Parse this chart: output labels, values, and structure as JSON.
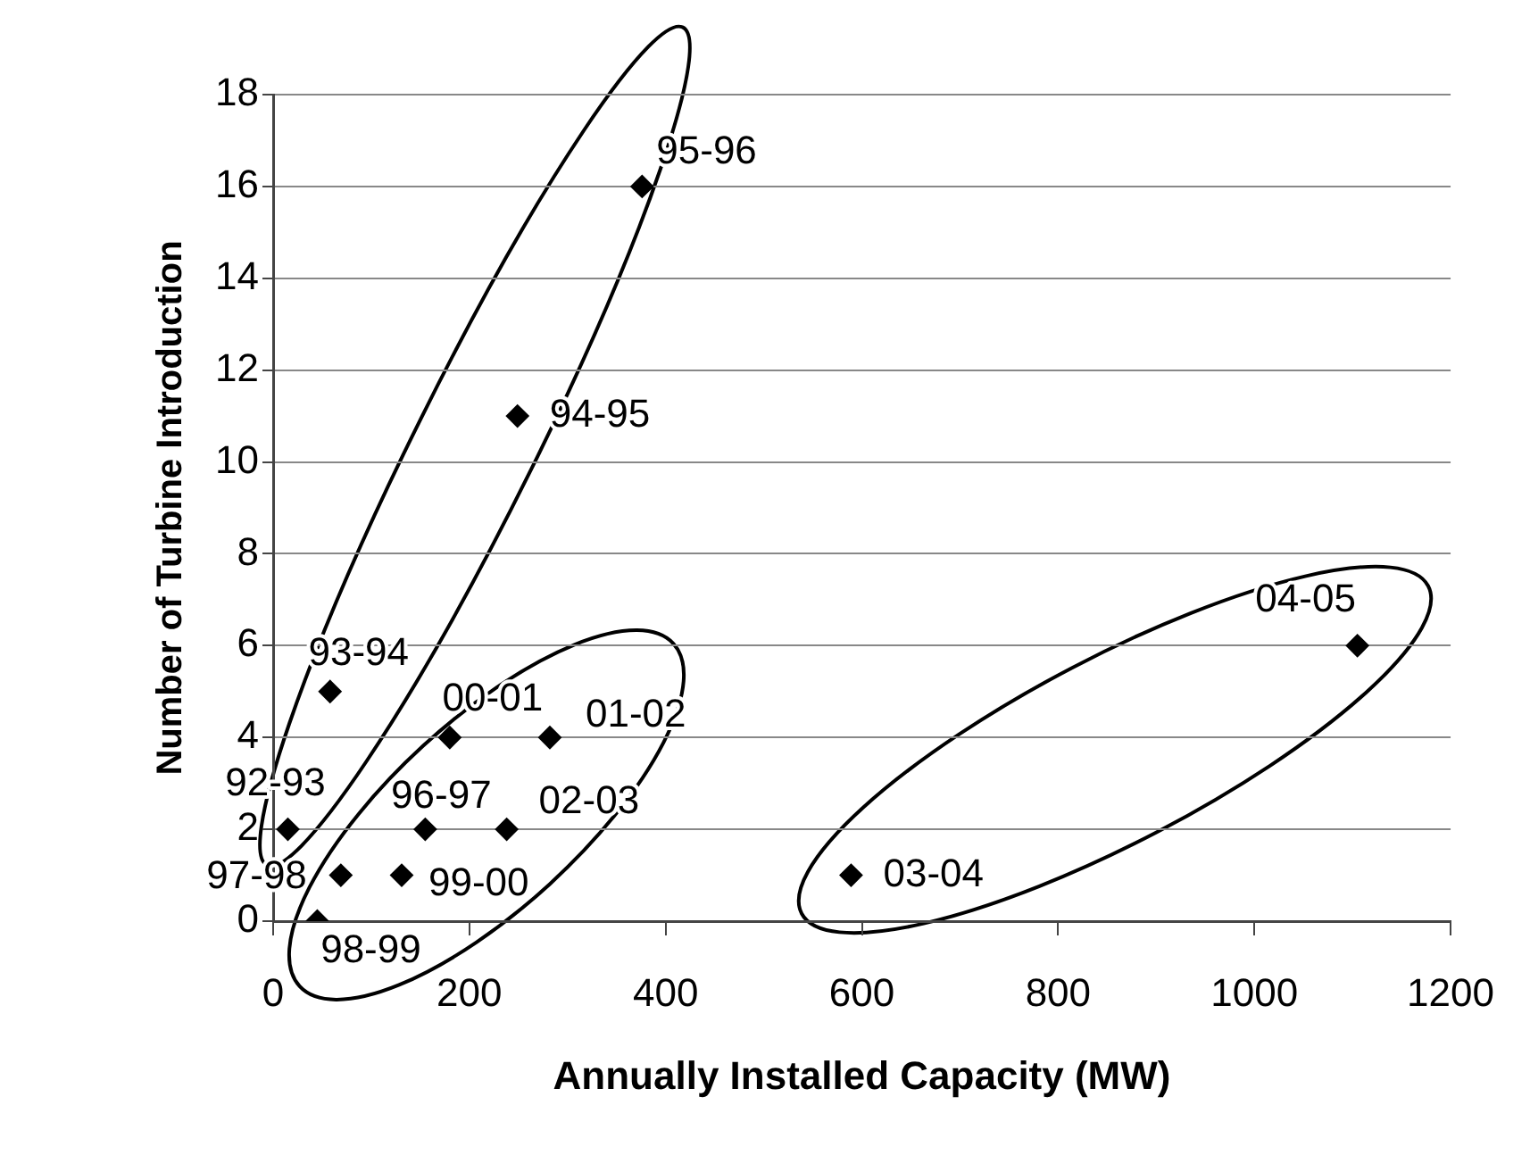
{
  "chart_data": {
    "type": "scatter",
    "xlabel": "Annually Installed Capacity (MW)",
    "ylabel": "Number of Turbine Introduction",
    "x": [
      15,
      58,
      249,
      376,
      155,
      69,
      45,
      131,
      180,
      282,
      238,
      589,
      1105
    ],
    "values": [
      2,
      5,
      11,
      16,
      2,
      1,
      0,
      1,
      4,
      4,
      2,
      1,
      6
    ],
    "value_labels": [
      "92-93",
      "93-94",
      "94-95",
      "95-96",
      "96-97",
      "97-98",
      "98-99",
      "99-00",
      "00-01",
      "01-02",
      "02-03",
      "03-04",
      "04-05"
    ],
    "color": "#000000",
    "marker": "diamond",
    "xlim": [
      0,
      1200
    ],
    "xticks": [
      0,
      200,
      400,
      600,
      800,
      1000,
      1200
    ],
    "ylim": [
      0,
      18
    ],
    "yticks": [
      0,
      2,
      4,
      6,
      8,
      10,
      12,
      14,
      16,
      18
    ],
    "grid": "y"
  }
}
